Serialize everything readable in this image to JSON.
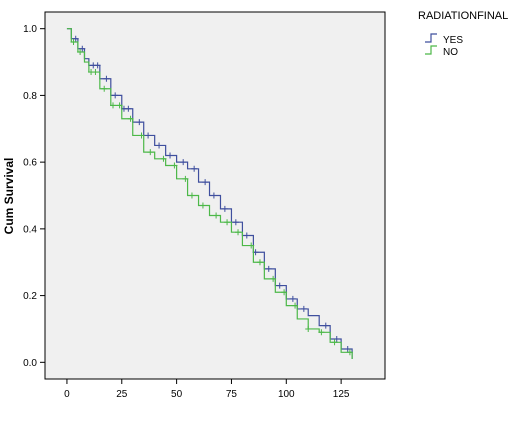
{
  "chart_data": {
    "type": "line",
    "step": true,
    "title": "",
    "xlabel": "",
    "ylabel": "Cum Survival",
    "xlim": [
      -10,
      145
    ],
    "ylim": [
      -0.05,
      1.05
    ],
    "x_ticks": [
      0,
      25,
      50,
      75,
      100,
      125
    ],
    "y_ticks": [
      0.0,
      0.2,
      0.4,
      0.6,
      0.8,
      1.0
    ],
    "y_tick_labels": [
      "0.0",
      "0.2",
      "0.4",
      "0.6",
      "0.8",
      "1.0"
    ],
    "grid": false,
    "plot_background": "#f0f0f0",
    "legend": {
      "title": "RADIATIONFINAL",
      "placement": "outside-top-right",
      "entries": [
        {
          "label": "YES",
          "color": "#3f4f9e"
        },
        {
          "label": "NO",
          "color": "#4cb848"
        }
      ]
    },
    "series": [
      {
        "name": "YES",
        "color": "#3f4f9e",
        "x": [
          0,
          2,
          5,
          8,
          10,
          15,
          20,
          25,
          30,
          35,
          40,
          45,
          50,
          55,
          60,
          65,
          70,
          75,
          80,
          85,
          90,
          95,
          100,
          105,
          110,
          115,
          120,
          125,
          130
        ],
        "y": [
          1.0,
          0.97,
          0.94,
          0.91,
          0.89,
          0.85,
          0.8,
          0.76,
          0.72,
          0.68,
          0.65,
          0.62,
          0.6,
          0.58,
          0.54,
          0.5,
          0.46,
          0.42,
          0.38,
          0.33,
          0.28,
          0.23,
          0.19,
          0.16,
          0.14,
          0.11,
          0.07,
          0.04,
          0.01
        ]
      },
      {
        "name": "NO",
        "color": "#4cb848",
        "x": [
          0,
          2,
          5,
          8,
          10,
          15,
          20,
          25,
          30,
          35,
          40,
          45,
          50,
          55,
          60,
          65,
          70,
          75,
          80,
          85,
          90,
          95,
          100,
          105,
          110,
          115,
          120,
          125,
          130
        ],
        "y": [
          1.0,
          0.96,
          0.93,
          0.9,
          0.87,
          0.82,
          0.77,
          0.73,
          0.68,
          0.63,
          0.61,
          0.59,
          0.55,
          0.5,
          0.47,
          0.44,
          0.42,
          0.39,
          0.35,
          0.3,
          0.25,
          0.21,
          0.17,
          0.13,
          0.1,
          0.09,
          0.06,
          0.03,
          0.01
        ]
      }
    ],
    "censor_marks": [
      {
        "series": "YES",
        "x": [
          4,
          7,
          12,
          14,
          18,
          22,
          26,
          28,
          33,
          37,
          42,
          47,
          53,
          58,
          63,
          67,
          72,
          77,
          82,
          86,
          92,
          97,
          103,
          108,
          118,
          123,
          128
        ]
      },
      {
        "series": "NO",
        "x": [
          3,
          6,
          11,
          13,
          17,
          21,
          24,
          29,
          34,
          38,
          44,
          49,
          54,
          57,
          62,
          68,
          73,
          78,
          84,
          88,
          94,
          99,
          104,
          110,
          116,
          122,
          129
        ]
      }
    ]
  }
}
